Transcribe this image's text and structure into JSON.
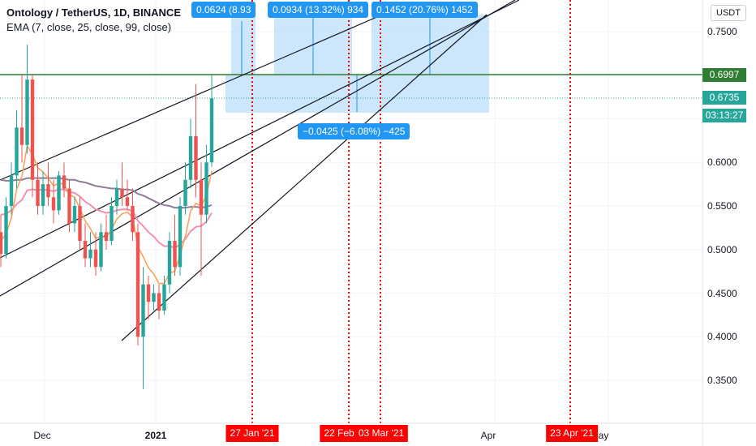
{
  "header": {
    "title": "Ontology / TetherUS, 1D, BINANCE",
    "indicator": "EMA (7, close, 25, close, 99, close)"
  },
  "currency_badge": "USDT",
  "price_tags": {
    "level": "0.6997",
    "last": "0.6735",
    "countdown": "03:13:27"
  },
  "date_tags": [
    "27 Jan '21",
    "22 Feb",
    "03 Mar '21",
    "23 Apr '21"
  ],
  "measures": [
    {
      "text": "0.0624 (8.93"
    },
    {
      "text": "0.0934 (13.32%) 934"
    },
    {
      "text": "0.1452 (20.76%) 1452"
    },
    {
      "text": "−0.0425 (−6.08%) −425"
    }
  ],
  "colors": {
    "up": "#26a69a",
    "down": "#ef5350",
    "ema7": "#f7a35c",
    "ema25": "#f48fb1",
    "ema99": "#8d7d99",
    "level_line": "#2e7d32",
    "last_price": "#26a69a",
    "measure_fill": "#bbdefb",
    "measure": "#2196f3",
    "date_marker": "#ff0000"
  },
  "chart_data": {
    "type": "candlestick",
    "title": "Ontology / TetherUS, 1D, BINANCE",
    "x_axis": {
      "ticks": [
        "Dec",
        "2021",
        "Apr",
        "ay"
      ]
    },
    "y_axis": {
      "ticks": [
        0.35,
        0.4,
        0.45,
        0.5,
        0.55,
        0.6,
        0.65,
        0.7,
        0.75
      ],
      "ylim": [
        0.3,
        0.78
      ],
      "position": "right"
    },
    "horizontal_level": 0.6997,
    "last_price": 0.6735,
    "candles": [
      {
        "o": 0.52,
        "h": 0.54,
        "l": 0.48,
        "c": 0.495
      },
      {
        "o": 0.495,
        "h": 0.56,
        "l": 0.49,
        "c": 0.55
      },
      {
        "o": 0.55,
        "h": 0.6,
        "l": 0.54,
        "c": 0.585
      },
      {
        "o": 0.585,
        "h": 0.66,
        "l": 0.57,
        "c": 0.64
      },
      {
        "o": 0.64,
        "h": 0.7,
        "l": 0.6,
        "c": 0.62
      },
      {
        "o": 0.62,
        "h": 0.735,
        "l": 0.61,
        "c": 0.695
      },
      {
        "o": 0.695,
        "h": 0.7,
        "l": 0.56,
        "c": 0.58
      },
      {
        "o": 0.58,
        "h": 0.6,
        "l": 0.54,
        "c": 0.55
      },
      {
        "o": 0.55,
        "h": 0.59,
        "l": 0.54,
        "c": 0.575
      },
      {
        "o": 0.575,
        "h": 0.6,
        "l": 0.55,
        "c": 0.56
      },
      {
        "o": 0.56,
        "h": 0.58,
        "l": 0.53,
        "c": 0.545
      },
      {
        "o": 0.545,
        "h": 0.59,
        "l": 0.54,
        "c": 0.585
      },
      {
        "o": 0.585,
        "h": 0.6,
        "l": 0.56,
        "c": 0.57
      },
      {
        "o": 0.57,
        "h": 0.58,
        "l": 0.52,
        "c": 0.53
      },
      {
        "o": 0.53,
        "h": 0.56,
        "l": 0.52,
        "c": 0.55
      },
      {
        "o": 0.55,
        "h": 0.56,
        "l": 0.5,
        "c": 0.51
      },
      {
        "o": 0.51,
        "h": 0.53,
        "l": 0.48,
        "c": 0.49
      },
      {
        "o": 0.49,
        "h": 0.52,
        "l": 0.48,
        "c": 0.5
      },
      {
        "o": 0.5,
        "h": 0.52,
        "l": 0.47,
        "c": 0.48
      },
      {
        "o": 0.48,
        "h": 0.53,
        "l": 0.475,
        "c": 0.52
      },
      {
        "o": 0.52,
        "h": 0.54,
        "l": 0.5,
        "c": 0.51
      },
      {
        "o": 0.51,
        "h": 0.56,
        "l": 0.505,
        "c": 0.55
      },
      {
        "o": 0.55,
        "h": 0.58,
        "l": 0.54,
        "c": 0.57
      },
      {
        "o": 0.57,
        "h": 0.6,
        "l": 0.55,
        "c": 0.56
      },
      {
        "o": 0.56,
        "h": 0.58,
        "l": 0.545,
        "c": 0.55
      },
      {
        "o": 0.55,
        "h": 0.57,
        "l": 0.51,
        "c": 0.52
      },
      {
        "o": 0.52,
        "h": 0.53,
        "l": 0.39,
        "c": 0.4
      },
      {
        "o": 0.4,
        "h": 0.48,
        "l": 0.34,
        "c": 0.46
      },
      {
        "o": 0.46,
        "h": 0.47,
        "l": 0.42,
        "c": 0.44
      },
      {
        "o": 0.44,
        "h": 0.46,
        "l": 0.43,
        "c": 0.45
      },
      {
        "o": 0.45,
        "h": 0.46,
        "l": 0.42,
        "c": 0.43
      },
      {
        "o": 0.43,
        "h": 0.47,
        "l": 0.425,
        "c": 0.46
      },
      {
        "o": 0.46,
        "h": 0.52,
        "l": 0.45,
        "c": 0.51
      },
      {
        "o": 0.51,
        "h": 0.54,
        "l": 0.47,
        "c": 0.48
      },
      {
        "o": 0.48,
        "h": 0.56,
        "l": 0.47,
        "c": 0.55
      },
      {
        "o": 0.55,
        "h": 0.6,
        "l": 0.54,
        "c": 0.58
      },
      {
        "o": 0.58,
        "h": 0.65,
        "l": 0.57,
        "c": 0.63
      },
      {
        "o": 0.63,
        "h": 0.69,
        "l": 0.56,
        "c": 0.58
      },
      {
        "o": 0.58,
        "h": 0.6,
        "l": 0.47,
        "c": 0.54
      },
      {
        "o": 0.54,
        "h": 0.62,
        "l": 0.53,
        "c": 0.6
      },
      {
        "o": 0.6,
        "h": 0.7,
        "l": 0.595,
        "c": 0.6735
      }
    ],
    "ema7": [
      0.51,
      0.518,
      0.536,
      0.569,
      0.584,
      0.619,
      0.609,
      0.594,
      0.589,
      0.582,
      0.573,
      0.576,
      0.575,
      0.563,
      0.56,
      0.547,
      0.533,
      0.524,
      0.513,
      0.515,
      0.514,
      0.523,
      0.535,
      0.541,
      0.543,
      0.537,
      0.503,
      0.492,
      0.479,
      0.472,
      0.461,
      0.461,
      0.473,
      0.475,
      0.494,
      0.515,
      0.544,
      0.553,
      0.55,
      0.562,
      0.59
    ],
    "ema25": [
      0.54,
      0.541,
      0.545,
      0.552,
      0.557,
      0.568,
      0.569,
      0.568,
      0.569,
      0.568,
      0.567,
      0.569,
      0.569,
      0.566,
      0.565,
      0.561,
      0.555,
      0.551,
      0.546,
      0.544,
      0.542,
      0.543,
      0.545,
      0.546,
      0.546,
      0.544,
      0.533,
      0.527,
      0.52,
      0.515,
      0.508,
      0.504,
      0.504,
      0.502,
      0.506,
      0.512,
      0.521,
      0.526,
      0.527,
      0.532,
      0.542
    ],
    "ema99": [
      0.58,
      0.579,
      0.579,
      0.58,
      0.58,
      0.582,
      0.582,
      0.582,
      0.582,
      0.582,
      0.582,
      0.582,
      0.581,
      0.58,
      0.58,
      0.578,
      0.577,
      0.575,
      0.573,
      0.572,
      0.571,
      0.57,
      0.57,
      0.569,
      0.569,
      0.568,
      0.564,
      0.562,
      0.559,
      0.556,
      0.553,
      0.551,
      0.55,
      0.548,
      0.548,
      0.548,
      0.549,
      0.549,
      0.548,
      0.549,
      0.551
    ]
  }
}
